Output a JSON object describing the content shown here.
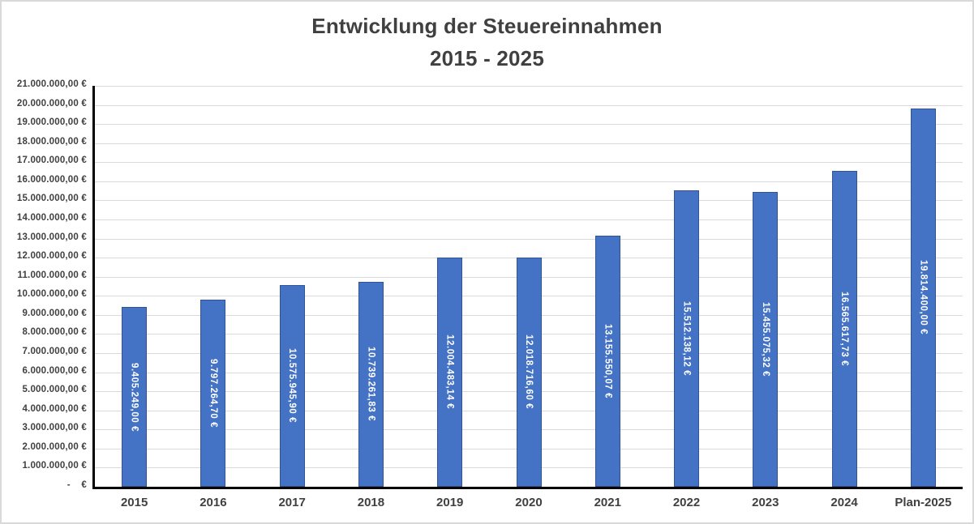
{
  "title": {
    "line1": "Entwicklung der Steuereinnahmen",
    "line2": "2015 - 2025"
  },
  "chart_data": {
    "type": "bar",
    "title": "Entwicklung der Steuereinnahmen 2015 - 2025",
    "xlabel": "",
    "ylabel": "",
    "categories": [
      "2015",
      "2016",
      "2017",
      "2018",
      "2019",
      "2020",
      "2021",
      "2022",
      "2023",
      "2024",
      "Plan-2025"
    ],
    "values": [
      9405249.0,
      9797264.7,
      10575945.9,
      10739261.83,
      12004483.14,
      12018716.6,
      13155550.07,
      15512138.12,
      15455075.32,
      16565617.73,
      19814400.0
    ],
    "value_labels": [
      "9.405.249,00 €",
      "9.797.264,70 €",
      "10.575.945,90 €",
      "10.739.261,83 €",
      "12.004.483,14 €",
      "12.018.716,60 €",
      "13.155.550,07 €",
      "15.512.138,12 €",
      "15.455.075,32 €",
      "16.565.617,73 €",
      "19.814.400,00 €"
    ],
    "ylim": [
      0,
      21000000
    ],
    "y_step": 1000000,
    "y_tick_labels": [
      "21.000.000,00 €",
      "20.000.000,00 €",
      "19.000.000,00 €",
      "18.000.000,00 €",
      "17.000.000,00 €",
      "16.000.000,00 €",
      "15.000.000,00 €",
      "14.000.000,00 €",
      "13.000.000,00 €",
      "12.000.000,00 €",
      "11.000.000,00 €",
      "10.000.000,00 €",
      "9.000.000,00 €",
      "8.000.000,00 €",
      "7.000.000,00 €",
      "6.000.000,00 €",
      "5.000.000,00 €",
      "4.000.000,00 €",
      "3.000.000,00 €",
      "2.000.000,00 €",
      "1.000.000,00 €",
      "-    €"
    ],
    "grid": true,
    "legend": false,
    "colors": {
      "bar_fill": "#4472C4",
      "bar_border": "#2F5597",
      "bar_label_text": "#FFFFFF",
      "gridline": "#D9D9D9",
      "axis_line": "#000000",
      "title_text": "#404040",
      "tick_text": "#404040",
      "background": "#FFFFFF",
      "canvas_border": "#D9D9D9"
    }
  }
}
